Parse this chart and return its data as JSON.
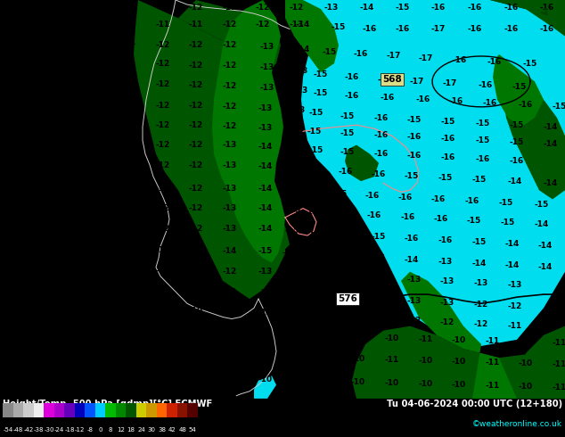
{
  "title_left": "Height/Temp. 500 hPa [gdmp][°C] ECMWF",
  "title_right": "Tu 04-06-2024 00:00 UTC (12+180)",
  "credit": "©weatheronline.co.uk",
  "colorbar_colors": [
    "#888888",
    "#aaaaaa",
    "#cccccc",
    "#eeeeee",
    "#dd00dd",
    "#aa00cc",
    "#6600bb",
    "#0000bb",
    "#0055ff",
    "#00ccff",
    "#00bb00",
    "#008800",
    "#005500",
    "#cccc00",
    "#cc9900",
    "#ff6600",
    "#cc2200",
    "#881100",
    "#550000"
  ],
  "colorbar_labels": [
    "-54",
    "-48",
    "-42",
    "-38",
    "-30",
    "-24",
    "-18",
    "-12",
    "-8",
    "0",
    "8",
    "12",
    "18",
    "24",
    "30",
    "38",
    "42",
    "48",
    "54"
  ],
  "bg_light_green": "#00bb00",
  "bg_dark_green": "#005500",
  "bg_medium_green": "#007700",
  "bg_cyan": "#00ddee",
  "fig_width": 6.34,
  "fig_height": 4.9,
  "dpi": 100
}
